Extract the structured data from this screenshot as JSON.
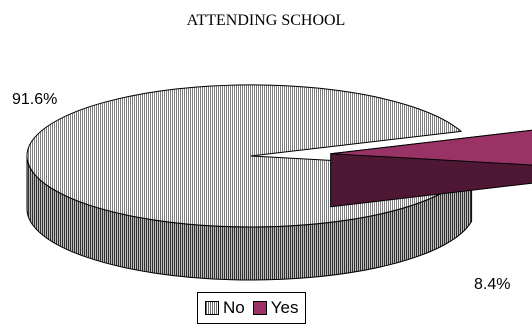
{
  "chart_data": {
    "type": "pie",
    "style": "3d-exploded",
    "title": "ATTENDING SCHOOL",
    "categories": [
      "No",
      "Yes"
    ],
    "values": [
      91.6,
      8.4
    ],
    "labels": [
      "91.6%",
      "8.4%"
    ],
    "colors": [
      "#9a9a9a",
      "#993366"
    ],
    "exploded": [
      "Yes"
    ],
    "legend_position": "bottom"
  }
}
